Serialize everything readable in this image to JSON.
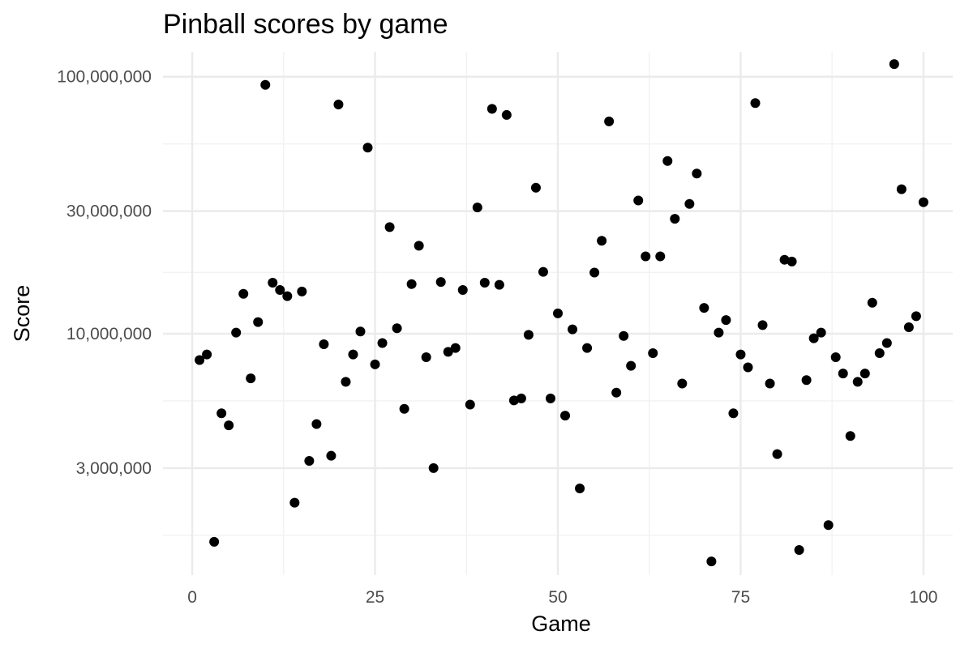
{
  "chart_data": {
    "type": "scatter",
    "title": "Pinball scores by game",
    "xlabel": "Game",
    "ylabel": "Score",
    "x_scale": "linear",
    "y_scale": "log10",
    "xlim": [
      -4,
      104
    ],
    "ylim": [
      1150000,
      125000000
    ],
    "x_ticks": [
      0,
      25,
      50,
      75,
      100
    ],
    "x_tick_labels": [
      "0",
      "25",
      "50",
      "75",
      "100"
    ],
    "x_minor_ticks": [
      12.5,
      37.5,
      62.5,
      87.5
    ],
    "y_ticks": [
      3000000,
      10000000,
      30000000,
      100000000
    ],
    "y_tick_labels": [
      "3,000,000",
      "10,000,000",
      "30,000,000",
      "100,000,000"
    ],
    "y_minor_ticks": [
      1643000,
      5477000,
      17320000,
      54770000
    ],
    "grid": true,
    "legend": "none",
    "point_color": "#000000",
    "x": [
      1,
      2,
      3,
      4,
      5,
      6,
      7,
      8,
      9,
      10,
      11,
      12,
      13,
      14,
      15,
      16,
      17,
      18,
      19,
      20,
      21,
      22,
      23,
      24,
      25,
      26,
      27,
      28,
      29,
      30,
      31,
      32,
      33,
      34,
      35,
      36,
      37,
      38,
      39,
      40,
      41,
      42,
      43,
      44,
      45,
      46,
      47,
      48,
      49,
      50,
      51,
      52,
      53,
      54,
      55,
      56,
      57,
      58,
      59,
      60,
      61,
      62,
      63,
      64,
      65,
      66,
      67,
      68,
      69,
      70,
      71,
      72,
      73,
      74,
      75,
      76,
      77,
      78,
      79,
      80,
      81,
      82,
      83,
      84,
      85,
      86,
      87,
      88,
      89,
      90,
      91,
      92,
      93,
      94,
      95,
      96,
      97,
      98,
      99,
      100
    ],
    "y": [
      7900000,
      8300000,
      1550000,
      4900000,
      4400000,
      10100000,
      14300000,
      6700000,
      11100000,
      93000000,
      15800000,
      14800000,
      14000000,
      2200000,
      14600000,
      3200000,
      4450000,
      9100000,
      3350000,
      78000000,
      6500000,
      8300000,
      10200000,
      53000000,
      7600000,
      9200000,
      26000000,
      10500000,
      5100000,
      15600000,
      22000000,
      8100000,
      3000000,
      15900000,
      8500000,
      8800000,
      14800000,
      5300000,
      31000000,
      15800000,
      75000000,
      15500000,
      71000000,
      5500000,
      5600000,
      9900000,
      37000000,
      17400000,
      5600000,
      12000000,
      4800000,
      10400000,
      2500000,
      8800000,
      17300000,
      23000000,
      67000000,
      5900000,
      9800000,
      7500000,
      33000000,
      20000000,
      8400000,
      20000000,
      47000000,
      28000000,
      6400000,
      32000000,
      42000000,
      12600000,
      1300000,
      10100000,
      11300000,
      4900000,
      8300000,
      7400000,
      79000000,
      10800000,
      6400000,
      3400000,
      19400000,
      19100000,
      1440000,
      6600000,
      9600000,
      10100000,
      1800000,
      8100000,
      7000000,
      4000000,
      6500000,
      7000000,
      13200000,
      8400000,
      9200000,
      112000000,
      36500000,
      10600000,
      11700000,
      32500000
    ]
  }
}
